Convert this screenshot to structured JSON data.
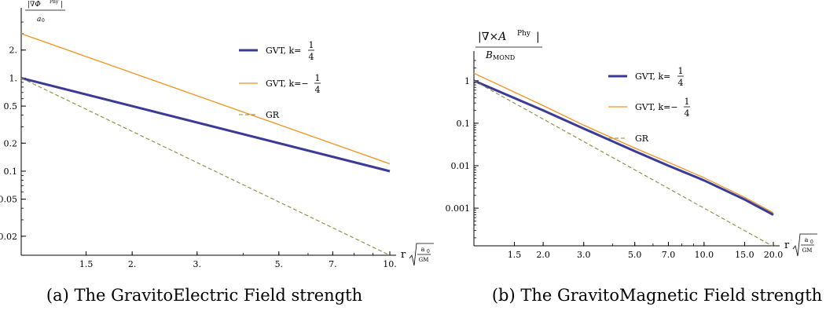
{
  "colors": {
    "k_quarter": "#3b3b96",
    "k_neg_quarter": "#f0921e",
    "gr": "#8a8a3c",
    "axis": "#000000"
  },
  "chart_data": [
    {
      "type": "line",
      "title": "",
      "caption": "(a) The GravitoElectric Field strength",
      "xlabel": "r",
      "xlabel_unit_num": "a",
      "xlabel_unit_sub": "0",
      "xlabel_unit_den": "GM",
      "ylabel_top": "|∇Φ",
      "ylabel_sup": "Phy",
      "ylabel_close": "|",
      "ylabel_den": "a",
      "ylabel_den_sub": "0",
      "xscale": "log",
      "yscale": "log",
      "xlim": [
        1,
        10
      ],
      "ylim": [
        0.0125,
        4.5
      ],
      "xticks": [
        1.5,
        2,
        3,
        5,
        7,
        10
      ],
      "xtick_labels": [
        "1.5",
        "2.",
        "3.",
        "5.",
        "7.",
        "10."
      ],
      "yticks": [
        0.02,
        0.05,
        0.1,
        0.2,
        0.5,
        1,
        2
      ],
      "ytick_labels": [
        "0.02",
        "0.05",
        "0.1",
        "0.2",
        "0.5",
        "1.",
        "2."
      ],
      "legend_position": "top-right",
      "series": [
        {
          "name": "GVT, k=1/4",
          "name_prefix": "GVT, k=",
          "name_sign": "",
          "frac_num": "1",
          "frac_den": "4",
          "style": "thick",
          "x": [
            1,
            10
          ],
          "y": [
            1.0,
            0.1
          ]
        },
        {
          "name": "GVT, k=-1/4",
          "name_prefix": "GVT, k=",
          "name_sign": "−",
          "frac_num": "1",
          "frac_den": "4",
          "style": "thin",
          "x": [
            1,
            10
          ],
          "y": [
            3.0,
            0.12
          ]
        },
        {
          "name": "GR",
          "name_prefix": "GR",
          "name_sign": "",
          "frac_num": "",
          "frac_den": "",
          "style": "dashed",
          "x": [
            1,
            10
          ],
          "y": [
            1.0,
            0.0125
          ]
        }
      ]
    },
    {
      "type": "line",
      "title": "",
      "caption": "(b) The GravitoMagnetic Field strength",
      "xlabel": "r",
      "xlabel_unit_num": "a",
      "xlabel_unit_sub": "0",
      "xlabel_unit_den": "GM",
      "ylabel_top": "|∇×A",
      "ylabel_sup": "Phy",
      "ylabel_close": "|",
      "ylabel_den": "B",
      "ylabel_den_sub": "MOND",
      "xscale": "log",
      "yscale": "log",
      "xlim": [
        1,
        20
      ],
      "ylim": [
        0.00013,
        3
      ],
      "xticks": [
        1.5,
        2,
        3,
        5,
        7,
        10,
        15,
        20
      ],
      "xtick_labels": [
        "1.5",
        "2.0",
        "3.0",
        "5.0",
        "7.0",
        "10.0",
        "15.0",
        "20.0"
      ],
      "yticks": [
        0.001,
        0.01,
        0.1,
        1
      ],
      "ytick_labels": [
        "0.001",
        "0.01",
        "0.1",
        "1"
      ],
      "legend_position": "top-right",
      "series": [
        {
          "name": "GVT, k=1/4",
          "name_prefix": "GVT, k=",
          "name_sign": "",
          "frac_num": "1",
          "frac_den": "4",
          "style": "thick",
          "x": [
            1,
            2,
            3,
            5,
            7,
            10,
            15,
            20
          ],
          "y": [
            1.0,
            0.2,
            0.075,
            0.022,
            0.01,
            0.0045,
            0.0016,
            0.0007
          ]
        },
        {
          "name": "GVT, k=-1/4",
          "name_prefix": "GVT, k=",
          "name_sign": "−",
          "frac_num": "1",
          "frac_den": "4",
          "style": "thin",
          "x": [
            1,
            2,
            3,
            5,
            7,
            10,
            15,
            20
          ],
          "y": [
            1.5,
            0.26,
            0.09,
            0.026,
            0.012,
            0.0052,
            0.0018,
            0.00078
          ]
        },
        {
          "name": "GR",
          "name_prefix": "GR",
          "name_sign": "",
          "frac_num": "",
          "frac_den": "",
          "style": "dashed",
          "x": [
            1,
            20
          ],
          "y": [
            1.0,
            0.000125
          ]
        }
      ]
    }
  ]
}
